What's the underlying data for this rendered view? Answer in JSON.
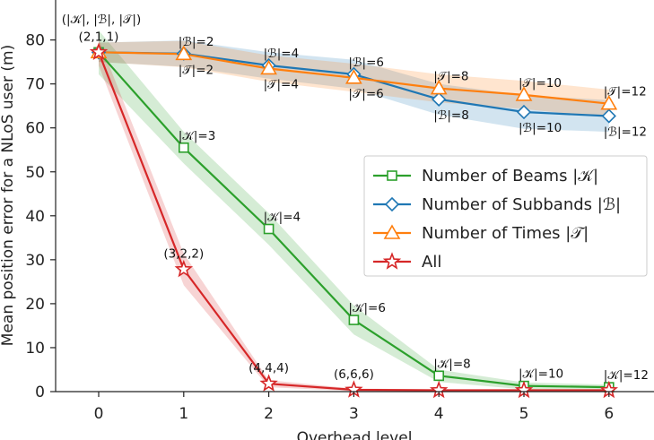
{
  "chart_data": {
    "type": "line",
    "xlabel": "Overhead level",
    "ylabel": "Mean position error for a NLoS user (m)",
    "xlim": [
      -0.5,
      6.5
    ],
    "ylim": [
      0,
      84
    ],
    "x_ticks": [
      "0",
      "1",
      "2",
      "3",
      "4",
      "5",
      "6"
    ],
    "y_ticks": [
      "0",
      "10",
      "20",
      "30",
      "40",
      "50",
      "60",
      "70",
      "80"
    ],
    "grid": false,
    "legend_position": "center-right",
    "corner_label": "(|𝒦|, |ℬ|, |𝒯|)",
    "series": [
      {
        "name": "Number of Beams |𝒦|",
        "color": "#2ca02c",
        "marker": "square",
        "x": [
          0,
          1,
          2,
          3,
          4,
          5,
          6
        ],
        "y": [
          77.2,
          55.5,
          37.0,
          16.3,
          3.6,
          1.3,
          1.0
        ],
        "band": [
          5.0,
          3.6,
          3.6,
          3.3,
          1.4,
          0.8,
          0.6
        ],
        "labels": [
          {
            "x": 1,
            "text": "|𝒦|=3",
            "pos": "above"
          },
          {
            "x": 2,
            "text": "|𝒦|=4",
            "pos": "above"
          },
          {
            "x": 3,
            "text": "|𝒦|=6",
            "pos": "above"
          },
          {
            "x": 4,
            "text": "|𝒦|=8",
            "pos": "above"
          },
          {
            "x": 5,
            "text": "|𝒦|=10",
            "pos": "above"
          },
          {
            "x": 6,
            "text": "|𝒦|=12",
            "pos": "above"
          }
        ]
      },
      {
        "name": "Number of Subbands |ℬ|",
        "color": "#1f77b4",
        "marker": "diamond",
        "x": [
          0,
          1,
          2,
          3,
          4,
          5,
          6
        ],
        "y": [
          77.2,
          76.9,
          74.2,
          72.2,
          66.5,
          63.6,
          62.7
        ],
        "band": [
          2.2,
          3.0,
          3.0,
          3.3,
          3.5,
          3.8,
          3.6
        ],
        "labels": [
          {
            "x": 1,
            "text": "|ℬ|=2",
            "pos": "above"
          },
          {
            "x": 2,
            "text": "|ℬ|=4",
            "pos": "above"
          },
          {
            "x": 3,
            "text": "|ℬ|=6",
            "pos": "above"
          },
          {
            "x": 4,
            "text": "|ℬ|=8",
            "pos": "below"
          },
          {
            "x": 5,
            "text": "|ℬ|=10",
            "pos": "below"
          },
          {
            "x": 6,
            "text": "|ℬ|=12",
            "pos": "below"
          }
        ]
      },
      {
        "name": "Number of Times |𝒯|",
        "color": "#ff7f0e",
        "marker": "triangle",
        "x": [
          0,
          1,
          2,
          3,
          4,
          5,
          6
        ],
        "y": [
          77.2,
          76.8,
          73.5,
          71.4,
          69.0,
          67.5,
          65.5
        ],
        "band": [
          2.2,
          3.0,
          3.0,
          3.2,
          3.2,
          3.2,
          3.2
        ],
        "labels": [
          {
            "x": 1,
            "text": "|𝒯|=2",
            "pos": "below"
          },
          {
            "x": 2,
            "text": "|𝒯|=4",
            "pos": "below"
          },
          {
            "x": 3,
            "text": "|𝒯|=6",
            "pos": "below"
          },
          {
            "x": 4,
            "text": "|𝒯|=8",
            "pos": "above"
          },
          {
            "x": 5,
            "text": "|𝒯|=10",
            "pos": "above"
          },
          {
            "x": 6,
            "text": "|𝒯|=12",
            "pos": "above"
          }
        ]
      },
      {
        "name": "All",
        "color": "#d62728",
        "marker": "star",
        "x": [
          0,
          1,
          2,
          3,
          4,
          5,
          6
        ],
        "y": [
          77.2,
          27.8,
          1.8,
          0.4,
          0.3,
          0.3,
          0.3
        ],
        "band": [
          3.0,
          3.6,
          0.8,
          0.3,
          0.2,
          0.2,
          0.2
        ],
        "labels": [
          {
            "x": 0,
            "text": "(2,1,1)",
            "pos": "above"
          },
          {
            "x": 1,
            "text": "(3,2,2)",
            "pos": "above"
          },
          {
            "x": 2,
            "text": "(4,4,4)",
            "pos": "above"
          },
          {
            "x": 3,
            "text": "(6,6,6)",
            "pos": "above"
          }
        ]
      }
    ]
  }
}
